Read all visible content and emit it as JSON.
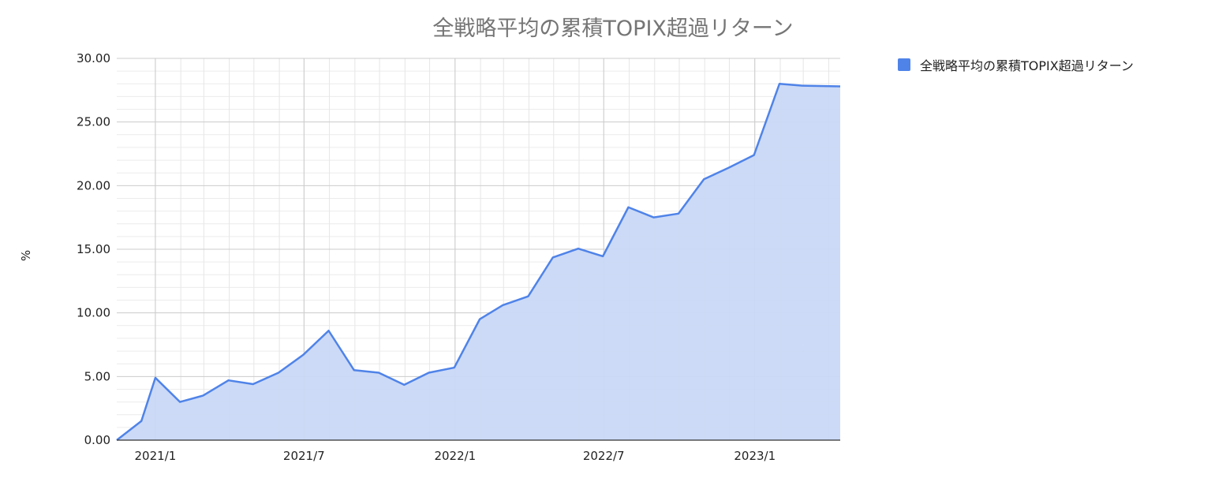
{
  "chart_data": {
    "type": "area",
    "title": "全戦略平均の累積TOPIX超過リターン",
    "ylabel": "%",
    "xlabel": "",
    "ylim": [
      0,
      30
    ],
    "xlim": [
      "2020-11-15",
      "2023-04-15"
    ],
    "yticks": [
      "0.00",
      "5.00",
      "10.00",
      "15.00",
      "20.00",
      "25.00",
      "30.00"
    ],
    "xticks": [
      {
        "label": "2021/1",
        "date": "2021-01-01"
      },
      {
        "label": "2021/7",
        "date": "2021-07-01"
      },
      {
        "label": "2022/1",
        "date": "2022-01-01"
      },
      {
        "label": "2022/7",
        "date": "2022-07-01"
      },
      {
        "label": "2023/1",
        "date": "2023-01-01"
      }
    ],
    "grid": true,
    "legend_position": "right",
    "series": [
      {
        "name": "全戦略平均の累積TOPIX超過リターン",
        "color": "#4f83e8",
        "fill": "#c9d8f7",
        "points": [
          [
            "2020-11-15",
            0.0
          ],
          [
            "2020-12-15",
            1.5
          ],
          [
            "2021-01-01",
            4.9
          ],
          [
            "2021-01-31",
            3.0
          ],
          [
            "2021-02-28",
            3.5
          ],
          [
            "2021-03-31",
            4.7
          ],
          [
            "2021-04-30",
            4.4
          ],
          [
            "2021-05-31",
            5.3
          ],
          [
            "2021-06-30",
            6.7
          ],
          [
            "2021-07-31",
            8.6
          ],
          [
            "2021-08-31",
            5.5
          ],
          [
            "2021-09-30",
            5.3
          ],
          [
            "2021-10-31",
            4.35
          ],
          [
            "2021-11-30",
            5.3
          ],
          [
            "2021-12-31",
            5.7
          ],
          [
            "2022-01-31",
            9.5
          ],
          [
            "2022-02-28",
            10.6
          ],
          [
            "2022-03-31",
            11.3
          ],
          [
            "2022-04-30",
            14.35
          ],
          [
            "2022-05-31",
            15.05
          ],
          [
            "2022-06-30",
            14.45
          ],
          [
            "2022-07-31",
            18.3
          ],
          [
            "2022-08-31",
            17.5
          ],
          [
            "2022-09-30",
            17.8
          ],
          [
            "2022-10-31",
            20.5
          ],
          [
            "2022-11-30",
            21.4
          ],
          [
            "2022-12-31",
            22.4
          ],
          [
            "2023-01-31",
            28.0
          ],
          [
            "2023-02-28",
            27.85
          ],
          [
            "2023-04-15",
            27.8
          ]
        ]
      }
    ]
  }
}
